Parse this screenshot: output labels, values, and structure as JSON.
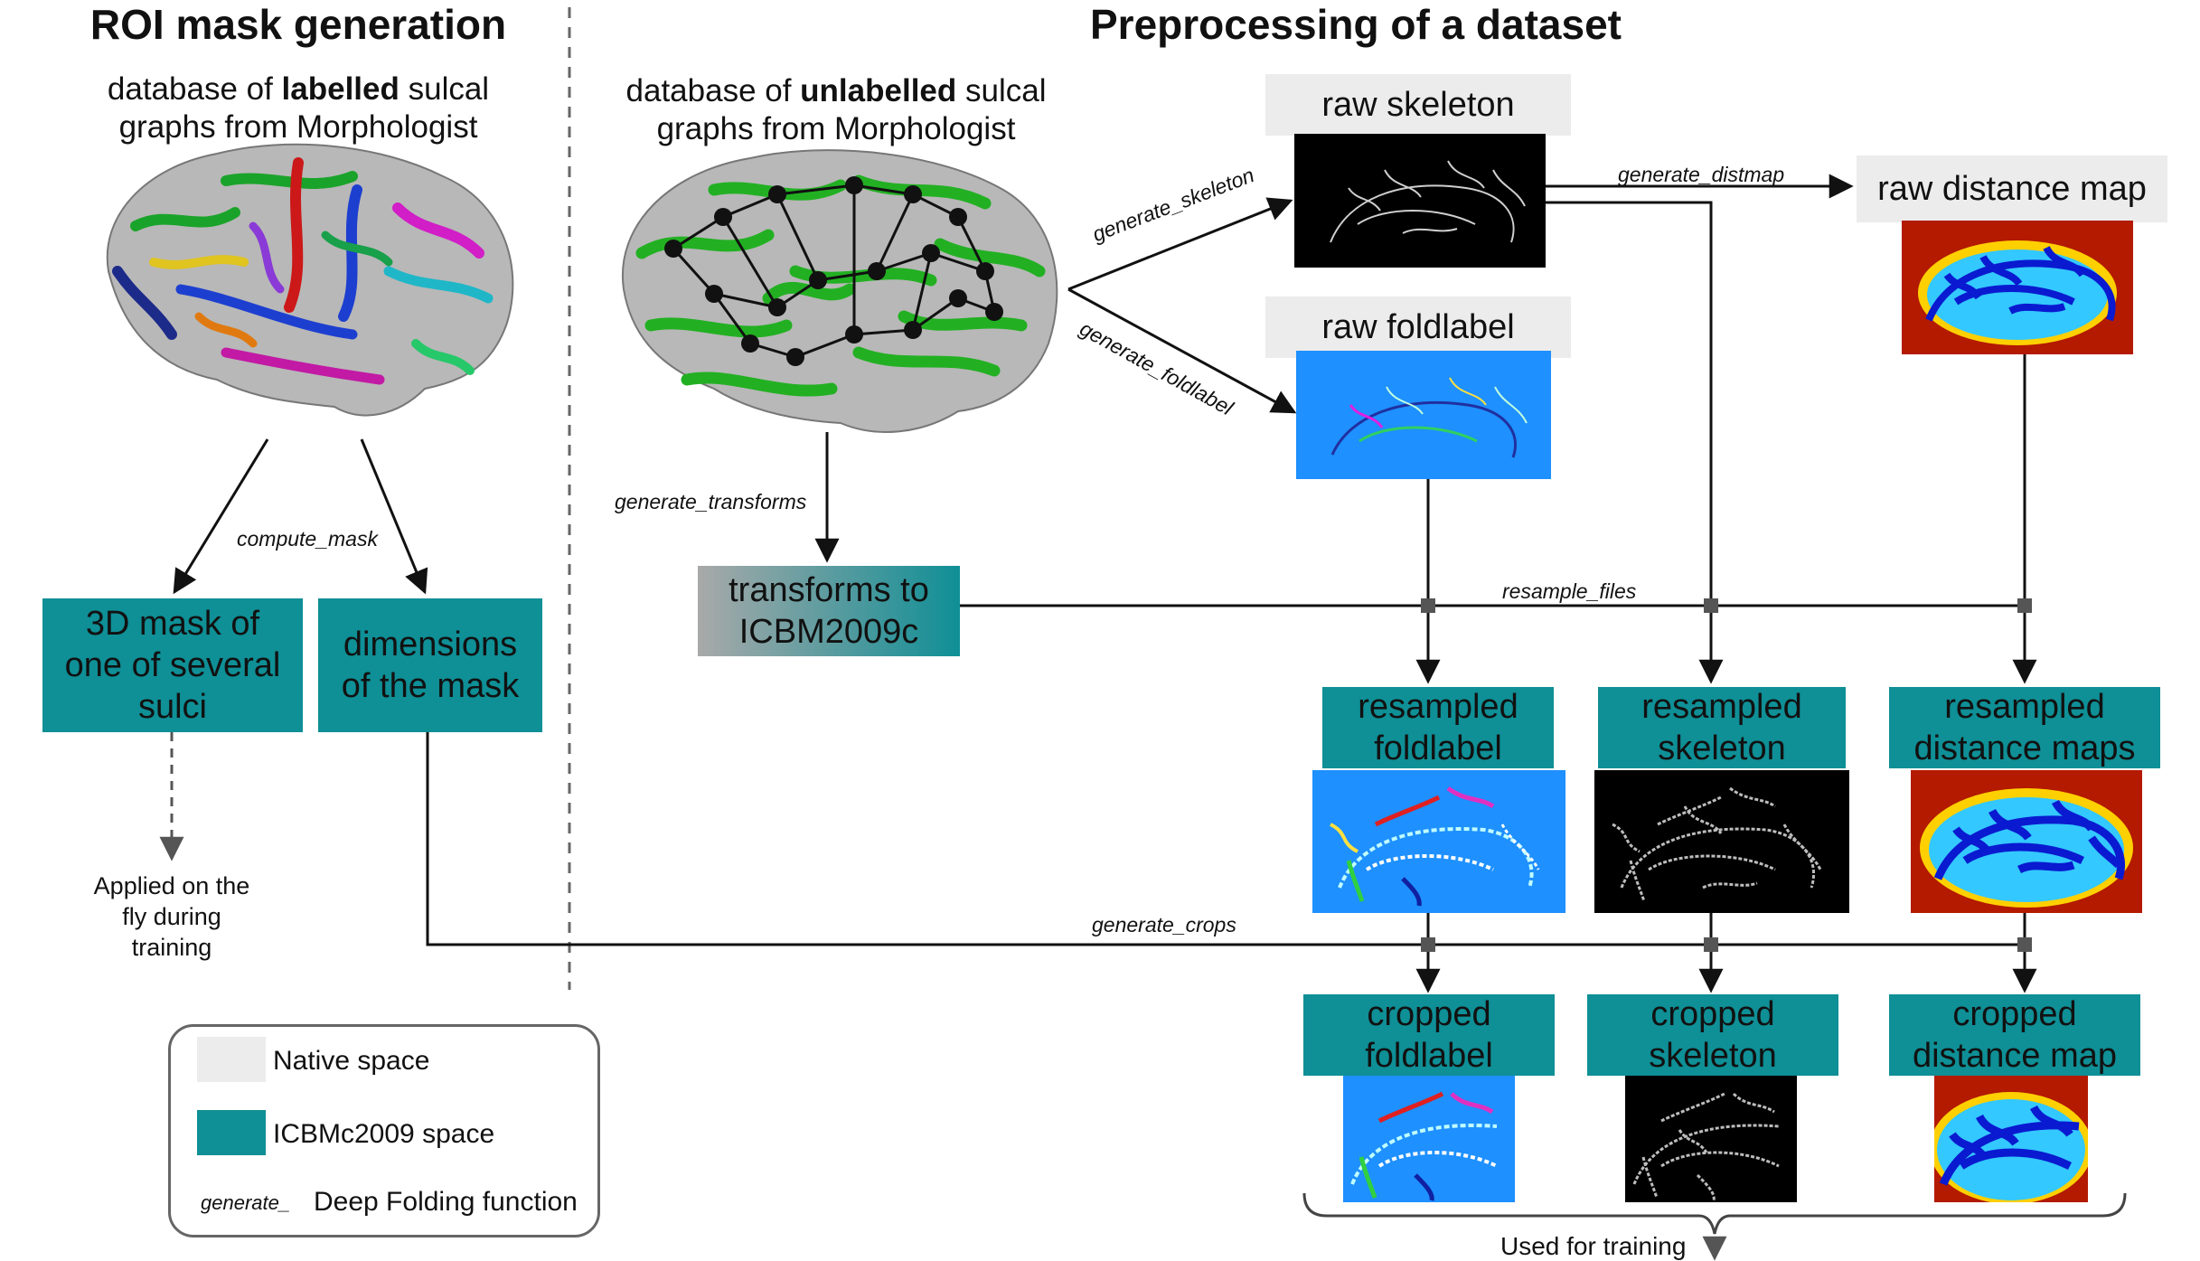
{
  "left_panel": {
    "title": "ROI mask generation",
    "caption_prefix": "database of ",
    "caption_bold": "labelled",
    "caption_suffix": " sulcal",
    "caption_line2": "graphs from Morphologist",
    "function_compute_mask": "compute_mask",
    "box_mask": "3D mask of one of several sulci",
    "box_dimensions": "dimensions of the mask",
    "applied_note": "Applied on the fly during training"
  },
  "right_panel": {
    "title": "Preprocessing of a dataset",
    "caption_prefix": "database of ",
    "caption_bold": "unlabelled",
    "caption_suffix": " sulcal",
    "caption_line2": "graphs from Morphologist",
    "raw_skeleton": "raw skeleton",
    "raw_foldlabel": "raw foldlabel",
    "raw_distance_map": "raw distance map",
    "transforms_box": "transforms to ICBM2009c",
    "resampled_foldlabel": "resampled foldlabel",
    "resampled_skeleton": "resampled skeleton",
    "resampled_distance_maps": "resampled distance maps",
    "cropped_foldlabel": "cropped foldlabel",
    "cropped_skeleton": "cropped skeleton",
    "cropped_distance_map": "cropped distance map",
    "used_for_training": "Used for training"
  },
  "functions": {
    "generate_skeleton": "generate_skeleton",
    "generate_foldlabel": "generate_foldlabel",
    "generate_distmap": "generate_distmap",
    "generate_transforms": "generate_transforms",
    "resample_files": "resample_files",
    "generate_crops": "generate_crops"
  },
  "legend": {
    "native_space": "Native space",
    "icbm_space": "ICBMc2009 space",
    "function_sample": "generate_",
    "function_desc": "Deep Folding function"
  },
  "colors": {
    "teal": "#0f8f96",
    "native_grey": "#ececec",
    "foldlabel_blue": "#1e90ff",
    "distmap_red": "#b31a00"
  }
}
